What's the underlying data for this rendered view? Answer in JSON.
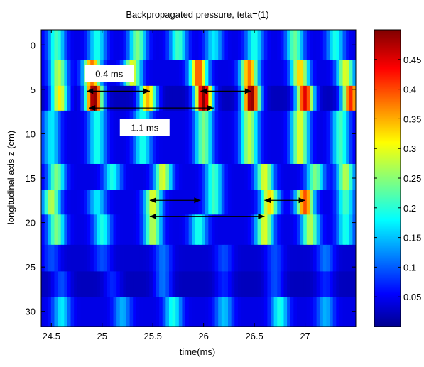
{
  "chart_data": {
    "type": "heatmap",
    "title": "Backpropagated pressure, teta=(1)",
    "xlabel": "time(ms)",
    "ylabel": "longitudinal axis z (cm)",
    "xlim": [
      24.4,
      27.5
    ],
    "ylim": [
      -1.7,
      31.7
    ],
    "x_ticks": [
      24.5,
      25,
      25.5,
      26,
      26.5,
      27
    ],
    "x_tick_labels": [
      "24.5",
      "25",
      "25.5",
      "26",
      "26.5",
      "27"
    ],
    "y_ticks": [
      0,
      5,
      10,
      15,
      20,
      25,
      30
    ],
    "y_tick_labels": [
      "0",
      "5",
      "10",
      "15",
      "20",
      "25",
      "30"
    ],
    "y_direction": "reversed",
    "colormap": "jet",
    "clim": [
      0,
      0.5
    ],
    "colorbar_ticks": [
      0.05,
      0.1,
      0.15,
      0.2,
      0.25,
      0.3,
      0.35,
      0.4,
      0.45
    ],
    "colorbar_tick_labels": [
      "0.05",
      "0.1",
      "0.15",
      "0.2",
      "0.25",
      "0.3",
      "0.35",
      "0.4",
      "0.45"
    ],
    "bands": [
      {
        "z_range": [
          -1.7,
          1.7
        ],
        "peaks": [
          [
            24.55,
            0.22
          ],
          [
            24.95,
            0.2
          ],
          [
            25.35,
            0.25
          ],
          [
            25.75,
            0.22
          ],
          [
            26.1,
            0.18
          ],
          [
            26.5,
            0.2
          ],
          [
            26.9,
            0.24
          ],
          [
            27.3,
            0.2
          ]
        ],
        "base": 0.05
      },
      {
        "z_range": [
          1.7,
          4.6
        ],
        "peaks": [
          [
            24.57,
            0.28
          ],
          [
            24.9,
            0.38
          ],
          [
            25.3,
            0.3
          ],
          [
            25.95,
            0.4
          ],
          [
            26.45,
            0.38
          ],
          [
            26.95,
            0.34
          ],
          [
            27.4,
            0.3
          ]
        ],
        "base": 0.05
      },
      {
        "z_range": [
          4.6,
          7.4
        ],
        "peaks": [
          [
            24.58,
            0.32
          ],
          [
            24.92,
            0.5
          ],
          [
            25.45,
            0.35
          ],
          [
            26.0,
            0.5
          ],
          [
            26.47,
            0.5
          ],
          [
            27.0,
            0.45
          ],
          [
            27.45,
            0.42
          ]
        ],
        "base": 0.03
      },
      {
        "z_range": [
          7.4,
          13.4
        ],
        "peaks": [
          [
            24.5,
            0.18
          ],
          [
            24.95,
            0.2
          ],
          [
            25.4,
            0.2
          ],
          [
            26.0,
            0.25
          ],
          [
            26.45,
            0.28
          ],
          [
            26.95,
            0.3
          ],
          [
            27.35,
            0.22
          ]
        ],
        "base": 0.05
      },
      {
        "z_range": [
          13.4,
          16.3
        ],
        "peaks": [
          [
            24.55,
            0.25
          ],
          [
            25.1,
            0.2
          ],
          [
            25.6,
            0.3
          ],
          [
            26.1,
            0.22
          ],
          [
            26.6,
            0.3
          ],
          [
            27.1,
            0.25
          ],
          [
            27.4,
            0.28
          ]
        ],
        "base": 0.05
      },
      {
        "z_range": [
          16.3,
          19.1
        ],
        "peaks": [
          [
            24.5,
            0.28
          ],
          [
            24.95,
            0.18
          ],
          [
            25.5,
            0.3
          ],
          [
            26.1,
            0.22
          ],
          [
            26.65,
            0.33
          ],
          [
            27.0,
            0.4
          ],
          [
            27.4,
            0.22
          ]
        ],
        "base": 0.05
      },
      {
        "z_range": [
          19.1,
          22.5
        ],
        "peaks": [
          [
            24.55,
            0.25
          ],
          [
            25.0,
            0.2
          ],
          [
            25.5,
            0.28
          ],
          [
            25.95,
            0.2
          ],
          [
            26.6,
            0.3
          ],
          [
            27.05,
            0.28
          ],
          [
            27.4,
            0.2
          ]
        ],
        "base": 0.05
      },
      {
        "z_range": [
          22.5,
          25.5
        ],
        "peaks": [
          [
            24.5,
            0.1
          ],
          [
            25.0,
            0.1
          ],
          [
            25.6,
            0.12
          ],
          [
            26.2,
            0.1
          ],
          [
            26.7,
            0.1
          ],
          [
            27.2,
            0.12
          ]
        ],
        "base": 0.04
      },
      {
        "z_range": [
          25.5,
          28.4
        ],
        "peaks": [
          [
            24.6,
            0.1
          ],
          [
            25.1,
            0.08
          ],
          [
            25.6,
            0.12
          ],
          [
            26.2,
            0.08
          ],
          [
            26.7,
            0.1
          ],
          [
            27.2,
            0.08
          ]
        ],
        "base": 0.03
      },
      {
        "z_range": [
          28.4,
          31.7
        ],
        "peaks": [
          [
            24.6,
            0.18
          ],
          [
            25.2,
            0.15
          ],
          [
            25.7,
            0.2
          ],
          [
            26.2,
            0.16
          ],
          [
            26.75,
            0.2
          ],
          [
            27.2,
            0.15
          ]
        ],
        "base": 0.05
      }
    ],
    "annotations": [
      {
        "text": "0.4 ms",
        "anchor": [
          25.07,
          3.2
        ]
      },
      {
        "text": "1.1 ms",
        "anchor": [
          25.42,
          9.3
        ]
      }
    ],
    "arrows": [
      {
        "from": [
          24.85,
          5.2
        ],
        "to": [
          25.47,
          5.2
        ]
      },
      {
        "from": [
          24.87,
          7.1
        ],
        "to": [
          26.1,
          7.1
        ]
      },
      {
        "from": [
          25.97,
          5.2
        ],
        "to": [
          26.47,
          5.2
        ]
      },
      {
        "from": [
          25.47,
          17.5
        ],
        "to": [
          25.97,
          17.5
        ]
      },
      {
        "from": [
          25.47,
          19.3
        ],
        "to": [
          26.6,
          19.3
        ]
      },
      {
        "from": [
          26.6,
          17.5
        ],
        "to": [
          27.0,
          17.5
        ]
      }
    ]
  }
}
